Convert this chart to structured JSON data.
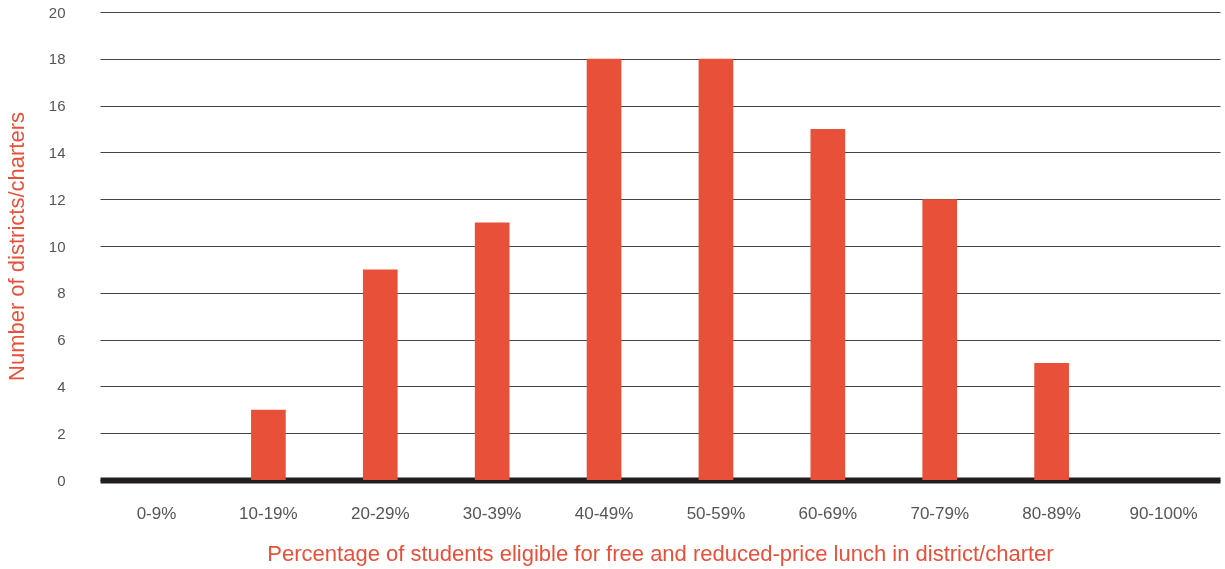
{
  "chart_data": {
    "type": "bar",
    "xlabel": "Percentage of students eligible for free and reduced-price lunch in district/charter",
    "ylabel": "Number of districts/charters",
    "categories": [
      "0-9%",
      "10-19%",
      "20-29%",
      "30-39%",
      "40-49%",
      "50-59%",
      "60-69%",
      "70-79%",
      "80-89%",
      "90-100%"
    ],
    "values": [
      0,
      3,
      9,
      11,
      18,
      18,
      15,
      12,
      5,
      0
    ],
    "color": "#e8503a",
    "ylim": [
      0,
      20
    ],
    "yticks": [
      0,
      2,
      4,
      6,
      8,
      10,
      12,
      14,
      16,
      18,
      20
    ],
    "grid": "y"
  }
}
